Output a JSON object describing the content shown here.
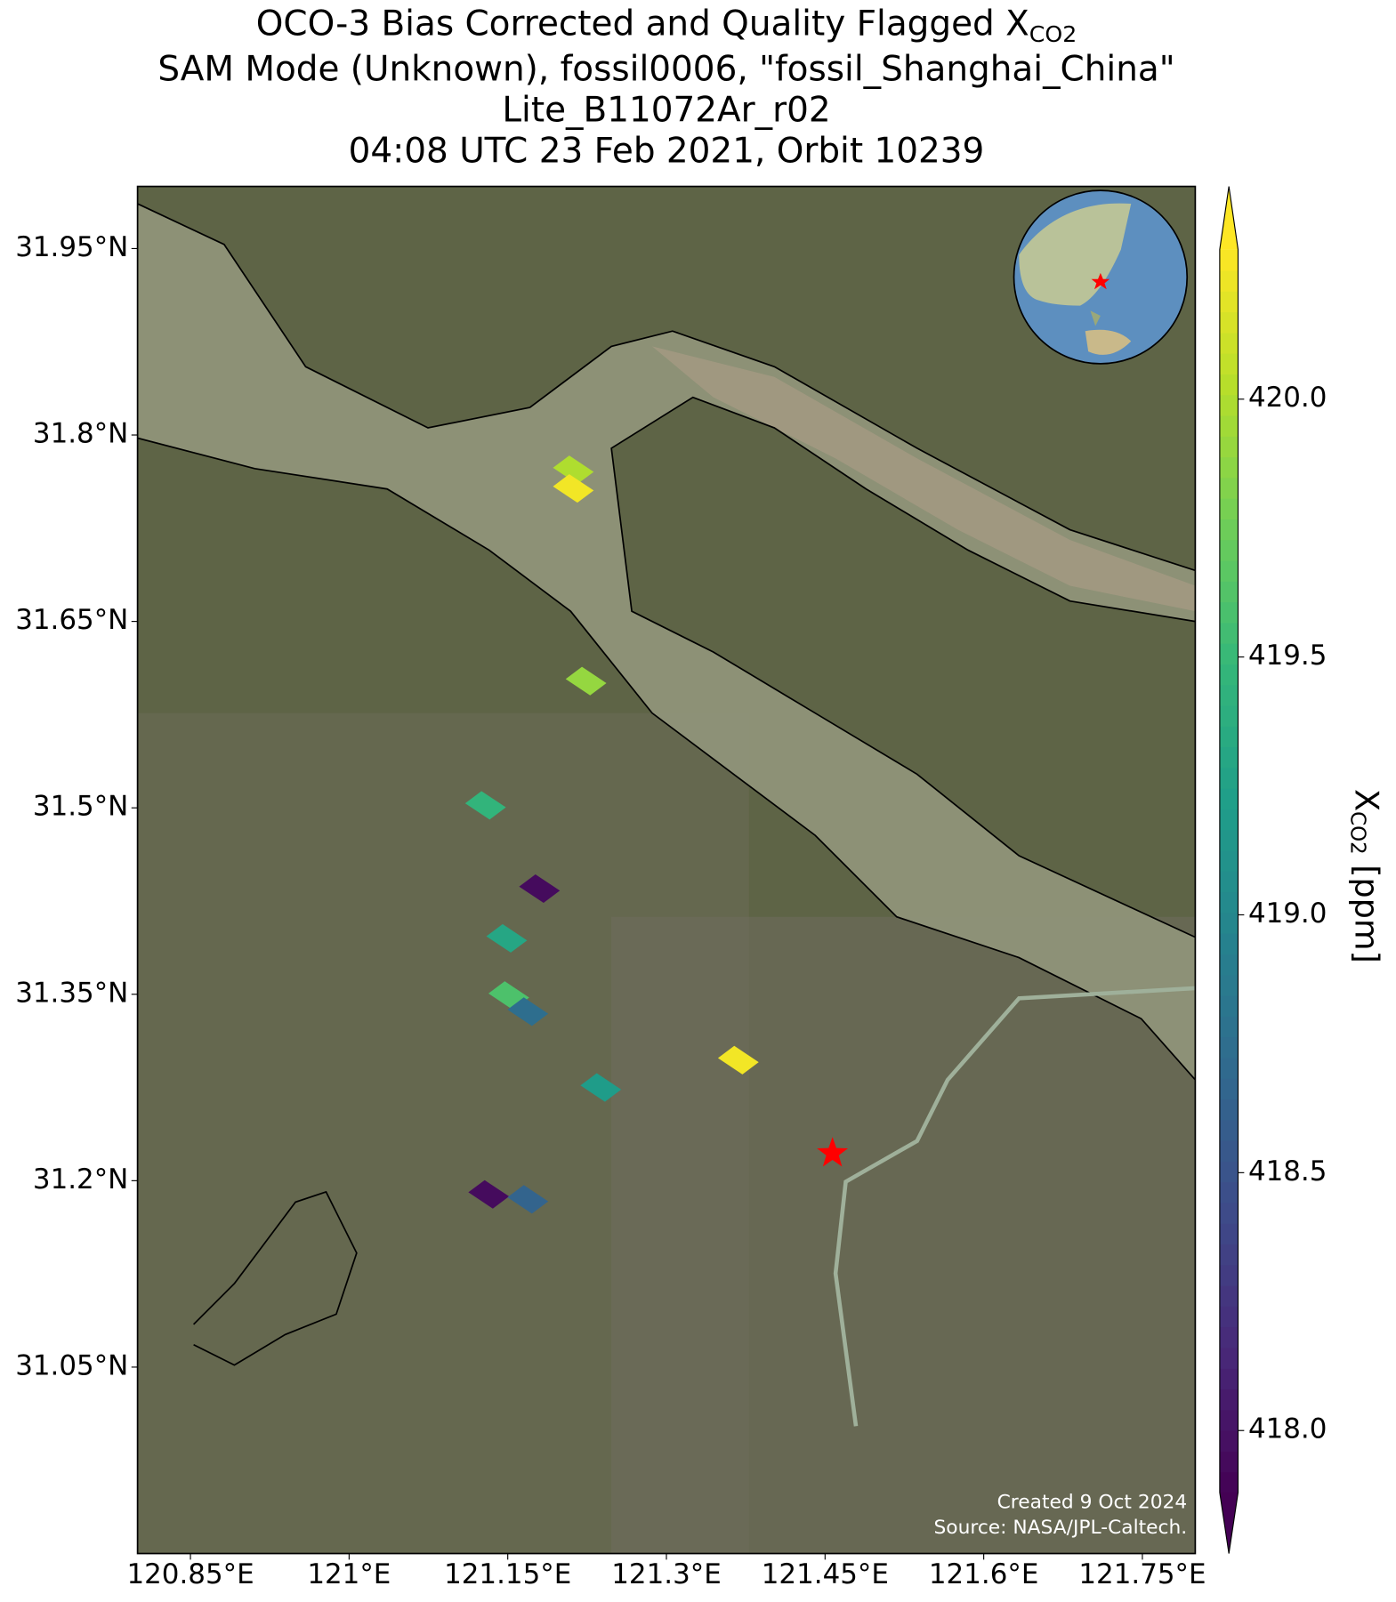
{
  "chart_data": {
    "type": "scatter",
    "title": [
      "OCO-3 Bias Corrected and Quality Flagged X",
      "SAM Mode (Unknown), fossil0006, \"fossil_Shanghai_China\"",
      "Lite_B11072Ar_r02",
      "04:08 UTC 23 Feb 2021, Orbit 10239"
    ],
    "title_subscript": "CO2",
    "colorbar_label": {
      "main": "X",
      "sub": "CO2",
      "unit": "[ppm]"
    },
    "colormap": "viridis",
    "credits": [
      "Created 9 Oct 2024",
      "Source: NASA/JPL-Caltech."
    ],
    "xlim": [
      120.8,
      121.8
    ],
    "ylim": [
      30.9,
      32.0
    ],
    "xticks": [
      {
        "value": 120.85,
        "label": "120.85°E"
      },
      {
        "value": 121.0,
        "label": "121°E"
      },
      {
        "value": 121.15,
        "label": "121.15°E"
      },
      {
        "value": 121.3,
        "label": "121.3°E"
      },
      {
        "value": 121.45,
        "label": "121.45°E"
      },
      {
        "value": 121.6,
        "label": "121.6°E"
      },
      {
        "value": 121.75,
        "label": "121.75°E"
      }
    ],
    "yticks": [
      {
        "value": 31.05,
        "label": "31.05°N"
      },
      {
        "value": 31.2,
        "label": "31.2°N"
      },
      {
        "value": 31.35,
        "label": "31.35°N"
      },
      {
        "value": 31.5,
        "label": "31.5°N"
      },
      {
        "value": 31.65,
        "label": "31.65°N"
      },
      {
        "value": 31.8,
        "label": "31.8°N"
      },
      {
        "value": 31.95,
        "label": "31.95°N"
      }
    ],
    "clim": [
      417.88,
      420.29
    ],
    "cticks": [
      {
        "value": 418.0,
        "label": "418.0"
      },
      418.5,
      {
        "value": 419.0,
        "label": "419.0"
      },
      419.5,
      {
        "value": 420.0,
        "label": "420.0"
      }
    ],
    "grid": true,
    "target": {
      "lon": 121.457,
      "lat": 31.222,
      "color": "#ff0000"
    },
    "lon": [
      121.212,
      121.212,
      121.224,
      121.129,
      121.18,
      121.149,
      121.151,
      121.169,
      121.368,
      121.238,
      121.132,
      121.169
    ],
    "lat": [
      31.772,
      31.757,
      31.602,
      31.502,
      31.435,
      31.395,
      31.349,
      31.336,
      31.297,
      31.275,
      31.189,
      31.185
    ],
    "values": [
      420.0,
      420.25,
      419.9,
      419.45,
      417.95,
      419.3,
      419.6,
      418.75,
      420.25,
      419.2,
      417.95,
      418.65
    ]
  }
}
